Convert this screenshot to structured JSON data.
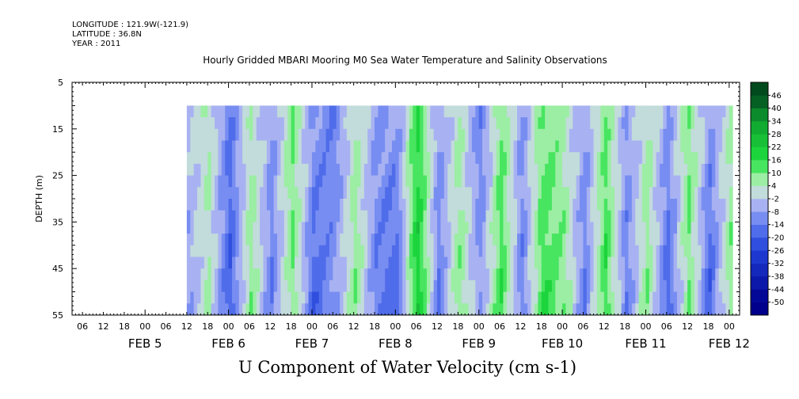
{
  "header": {
    "longitude": "LONGITUDE : 121.9W(-121.9)",
    "latitude": "LATITUDE : 36.8N",
    "year": "YEAR : 2011"
  },
  "chart_data": {
    "type": "heatmap",
    "title": "Hourly Gridded MBARI Mooring M0 Sea Water Temperature and Salinity Observations",
    "xlabel": "U Component of Water Velocity (cm s-1)",
    "ylabel": "DEPTH (m)",
    "y_range": [
      5,
      55
    ],
    "y_inverted": true,
    "y_ticks": [
      5,
      15,
      25,
      35,
      45,
      55
    ],
    "data_depth_range": [
      10,
      55
    ],
    "x_range_hours": [
      "2011-02-04T03:00",
      "2011-02-12T03:00"
    ],
    "data_time_range": [
      "2011-02-05T12:00",
      "2011-02-12T01:00"
    ],
    "x_hour_ticks": [
      "06",
      "12",
      "18",
      "00",
      "06",
      "12",
      "18",
      "00",
      "06",
      "12",
      "18",
      "00",
      "06",
      "12",
      "18",
      "00",
      "06",
      "12",
      "18",
      "00",
      "06",
      "12",
      "18",
      "00",
      "06",
      "12",
      "18",
      "00",
      "06",
      "12",
      "18",
      "00"
    ],
    "x_day_labels": [
      "FEB  5",
      "FEB  6",
      "FEB  7",
      "FEB  8",
      "FEB  9",
      "FEB 10",
      "FEB 11",
      "FEB 12"
    ],
    "colorbar": {
      "levels": [
        -50,
        -44,
        -38,
        -32,
        -26,
        -20,
        -14,
        -8,
        -2,
        4,
        10,
        16,
        22,
        28,
        34,
        40,
        46
      ],
      "label_texts": [
        "46",
        "40",
        "34",
        "28",
        "22",
        "16",
        "10",
        "4",
        "-2",
        "-8",
        "-14",
        "-20",
        "-26",
        "-32",
        "-38",
        "-44",
        "-50"
      ],
      "low_color": "#00008c",
      "mid_color": "#c8ccf0",
      "high_color": "#004a1e",
      "key_colors": {
        "pos_light": "#c4f2c4",
        "pos_mid": "#1ee03e",
        "neg_light": "#c0c4f2",
        "neg_mid": "#5f7af0"
      }
    },
    "velocity_profile": {
      "depths": [
        10,
        55
      ],
      "time_hours_from_feb5_12": [
        0,
        6,
        12,
        18,
        24,
        30,
        36,
        42,
        48,
        54,
        60,
        66,
        72,
        78,
        84,
        90,
        96,
        102,
        108,
        114,
        120,
        126,
        132,
        138,
        144,
        150,
        156,
        157
      ],
      "u_shallow": [
        -2,
        4,
        -14,
        4,
        -8,
        10,
        -8,
        -14,
        4,
        -8,
        -8,
        16,
        -8,
        4,
        -14,
        10,
        -8,
        10,
        4,
        -8,
        10,
        -8,
        4,
        -8,
        10,
        -8,
        4,
        10
      ],
      "u_deep": [
        -8,
        4,
        -20,
        10,
        -14,
        10,
        -20,
        -8,
        10,
        -14,
        -20,
        22,
        -14,
        10,
        -8,
        16,
        -14,
        16,
        10,
        -14,
        16,
        -14,
        10,
        -20,
        10,
        -20,
        10,
        4
      ]
    }
  }
}
